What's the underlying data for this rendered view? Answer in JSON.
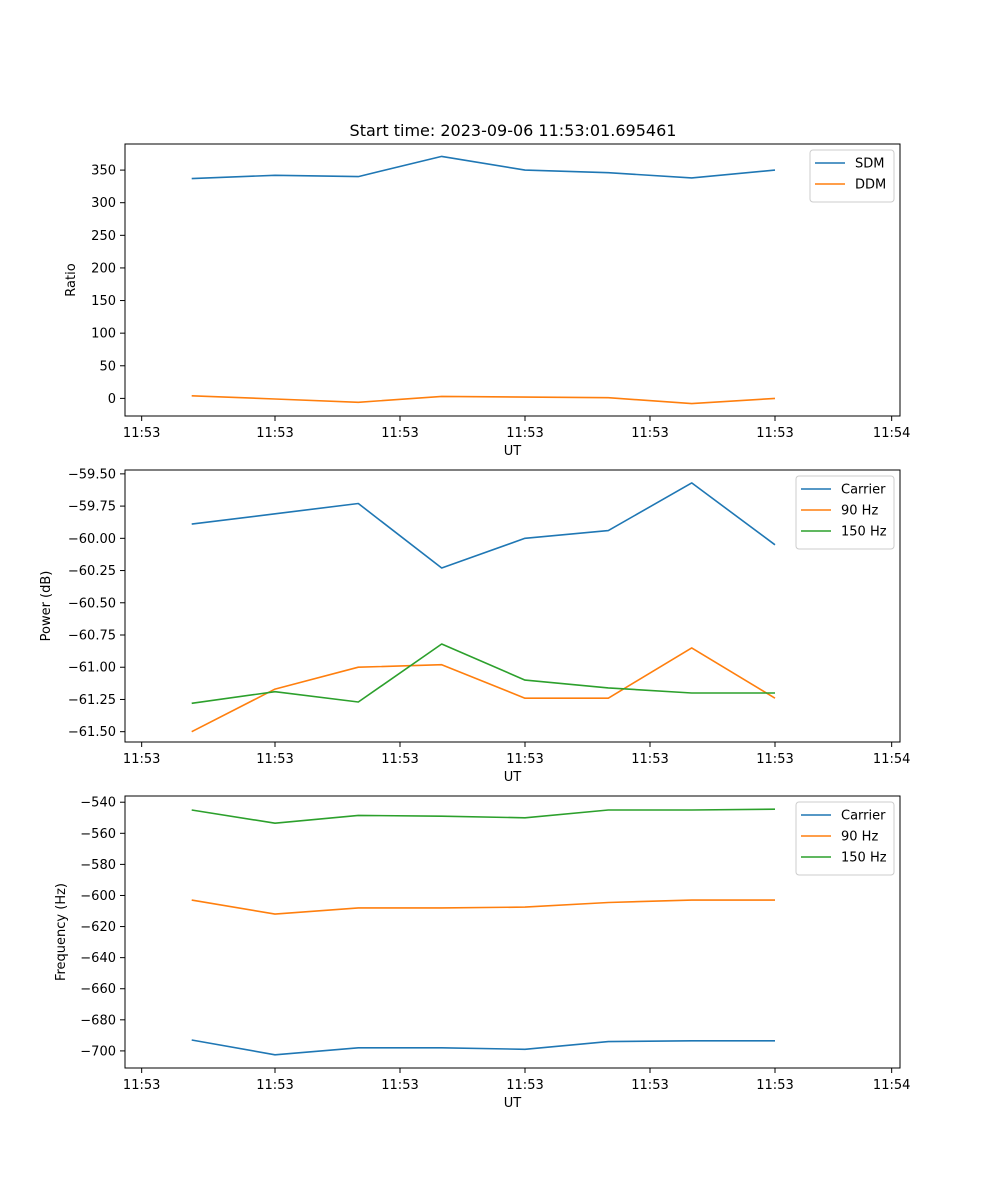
{
  "figure_title": "Start time: 2023-09-06 11:53:01.695461",
  "chart_data": [
    {
      "type": "line",
      "title": "Start time: 2023-09-06 11:53:01.695461",
      "xlabel": "UT",
      "ylabel": "Ratio",
      "xlim": [
        -0.5,
        8.8
      ],
      "ylim": [
        -27,
        390
      ],
      "x": [
        0.3,
        1.3,
        2.3,
        3.3,
        4.3,
        5.3,
        6.3,
        7.3
      ],
      "xticks": [
        {
          "v": -0.3,
          "label": "11:53"
        },
        {
          "v": 1.3,
          "label": "11:53"
        },
        {
          "v": 2.8,
          "label": "11:53"
        },
        {
          "v": 4.3,
          "label": "11:53"
        },
        {
          "v": 5.8,
          "label": "11:53"
        },
        {
          "v": 7.3,
          "label": "11:53"
        },
        {
          "v": 8.7,
          "label": "11:54"
        }
      ],
      "yticks": [
        0,
        50,
        100,
        150,
        200,
        250,
        300,
        350
      ],
      "ytick_labels": [
        "0",
        "50",
        "100",
        "150",
        "200",
        "250",
        "300",
        "350"
      ],
      "legend": "top-right",
      "series": [
        {
          "name": "SDM",
          "color": "#1f77b4",
          "values": [
            337,
            342,
            340,
            371,
            350,
            346,
            338,
            350
          ]
        },
        {
          "name": "DDM",
          "color": "#ff7f0e",
          "values": [
            4,
            -1,
            -6,
            3,
            2,
            1,
            -8,
            0
          ]
        }
      ]
    },
    {
      "type": "line",
      "title": "",
      "xlabel": "UT",
      "ylabel": "Power (dB)",
      "xlim": [
        -0.5,
        8.8
      ],
      "ylim": [
        -61.58,
        -59.47
      ],
      "x": [
        0.3,
        1.3,
        2.3,
        3.3,
        4.3,
        5.3,
        6.3,
        7.3
      ],
      "xticks": [
        {
          "v": -0.3,
          "label": "11:53"
        },
        {
          "v": 1.3,
          "label": "11:53"
        },
        {
          "v": 2.8,
          "label": "11:53"
        },
        {
          "v": 4.3,
          "label": "11:53"
        },
        {
          "v": 5.8,
          "label": "11:53"
        },
        {
          "v": 7.3,
          "label": "11:53"
        },
        {
          "v": 8.7,
          "label": "11:54"
        }
      ],
      "yticks": [
        -61.5,
        -61.25,
        -61.0,
        -60.75,
        -60.5,
        -60.25,
        -60.0,
        -59.75,
        -59.5
      ],
      "ytick_labels": [
        "−61.50",
        "−61.25",
        "−61.00",
        "−60.75",
        "−60.50",
        "−60.25",
        "−60.00",
        "−59.75",
        "−59.50"
      ],
      "legend": "top-right",
      "series": [
        {
          "name": "Carrier",
          "color": "#1f77b4",
          "values": [
            -59.89,
            -59.81,
            -59.73,
            -60.23,
            -60.0,
            -59.94,
            -59.57,
            -60.05
          ]
        },
        {
          "name": "90 Hz",
          "color": "#ff7f0e",
          "values": [
            -61.5,
            -61.17,
            -61.0,
            -60.98,
            -61.24,
            -61.24,
            -60.85,
            -61.24
          ]
        },
        {
          "name": "150 Hz",
          "color": "#2ca02c",
          "values": [
            -61.28,
            -61.19,
            -61.27,
            -60.82,
            -61.1,
            -61.16,
            -61.2,
            -61.2
          ]
        }
      ]
    },
    {
      "type": "line",
      "title": "",
      "xlabel": "UT",
      "ylabel": "Frequency (Hz)",
      "xlim": [
        -0.5,
        8.8
      ],
      "ylim": [
        -711,
        -536
      ],
      "x": [
        0.3,
        1.3,
        2.3,
        3.3,
        4.3,
        5.3,
        6.3,
        7.3
      ],
      "xticks": [
        {
          "v": -0.3,
          "label": "11:53"
        },
        {
          "v": 1.3,
          "label": "11:53"
        },
        {
          "v": 2.8,
          "label": "11:53"
        },
        {
          "v": 4.3,
          "label": "11:53"
        },
        {
          "v": 5.8,
          "label": "11:53"
        },
        {
          "v": 7.3,
          "label": "11:53"
        },
        {
          "v": 8.7,
          "label": "11:54"
        }
      ],
      "yticks": [
        -700,
        -680,
        -660,
        -640,
        -620,
        -600,
        -580,
        -560,
        -540
      ],
      "ytick_labels": [
        "−700",
        "−680",
        "−660",
        "−640",
        "−620",
        "−600",
        "−580",
        "−560",
        "−540"
      ],
      "legend": "top-right",
      "series": [
        {
          "name": "Carrier",
          "color": "#1f77b4",
          "values": [
            -693,
            -702.5,
            -698,
            -698,
            -699,
            -694,
            -693.5,
            -693.5
          ]
        },
        {
          "name": "90 Hz",
          "color": "#ff7f0e",
          "values": [
            -603,
            -612,
            -608,
            -608,
            -607.5,
            -604.5,
            -603,
            -603
          ]
        },
        {
          "name": "150 Hz",
          "color": "#2ca02c",
          "values": [
            -545,
            -553.5,
            -548.5,
            -549,
            -550,
            -545,
            -545,
            -544.5
          ]
        }
      ]
    }
  ]
}
